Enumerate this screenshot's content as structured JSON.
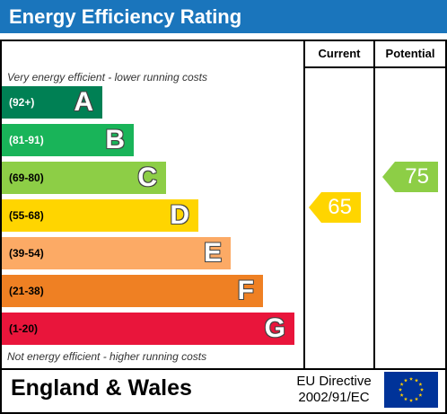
{
  "title": "Energy Efficiency Rating",
  "columns": {
    "current": "Current",
    "potential": "Potential"
  },
  "notes": {
    "top": "Very energy efficient - lower running costs",
    "bottom": "Not energy efficient - higher running costs"
  },
  "footer": {
    "region": "England & Wales",
    "directive_line1": "EU Directive",
    "directive_line2": "2002/91/EC",
    "flag_icon": "eu-flag-icon"
  },
  "chart_data": {
    "type": "bar",
    "bands": [
      {
        "letter": "A",
        "range": "(92+)",
        "color": "#008054",
        "range_color": "#ffffff"
      },
      {
        "letter": "B",
        "range": "(81-91)",
        "color": "#19b459",
        "range_color": "#ffffff"
      },
      {
        "letter": "C",
        "range": "(69-80)",
        "color": "#8dce46",
        "range_color": "#000000"
      },
      {
        "letter": "D",
        "range": "(55-68)",
        "color": "#ffd500",
        "range_color": "#000000"
      },
      {
        "letter": "E",
        "range": "(39-54)",
        "color": "#fcaa65",
        "range_color": "#000000"
      },
      {
        "letter": "F",
        "range": "(21-38)",
        "color": "#ef8023",
        "range_color": "#000000"
      },
      {
        "letter": "G",
        "range": "(1-20)",
        "color": "#e9153b",
        "range_color": "#000000"
      }
    ],
    "current": {
      "value": 65,
      "band": "D",
      "color": "#ffd500"
    },
    "potential": {
      "value": 75,
      "band": "C",
      "color": "#8dce46"
    }
  }
}
